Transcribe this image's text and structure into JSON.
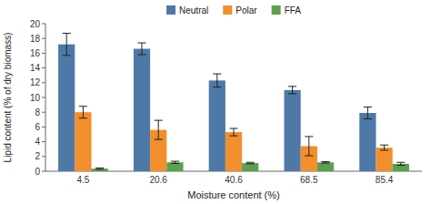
{
  "chart_data": {
    "type": "bar",
    "categories": [
      "4.5",
      "20.6",
      "40.6",
      "68.5",
      "85.4"
    ],
    "series": [
      {
        "name": "Neutral",
        "values": [
          17.2,
          16.6,
          12.3,
          11.0,
          7.9
        ],
        "errors": [
          1.5,
          0.8,
          0.9,
          0.5,
          0.8
        ]
      },
      {
        "name": "Polar",
        "values": [
          8.0,
          5.6,
          5.3,
          3.4,
          3.2
        ],
        "errors": [
          0.8,
          1.3,
          0.5,
          1.3,
          0.35
        ]
      },
      {
        "name": "FFA",
        "values": [
          0.35,
          1.2,
          1.1,
          1.2,
          1.0
        ],
        "errors": [
          0.1,
          0.15,
          0.1,
          0.1,
          0.2
        ]
      }
    ],
    "xlabel": "Moisture content (%)",
    "ylabel": "Lipid content (% of dry biomass)",
    "ylim": [
      0,
      20
    ],
    "yticks": [
      0,
      2,
      4,
      6,
      8,
      10,
      12,
      14,
      16,
      18,
      20
    ],
    "grid": false,
    "legend": "top"
  }
}
